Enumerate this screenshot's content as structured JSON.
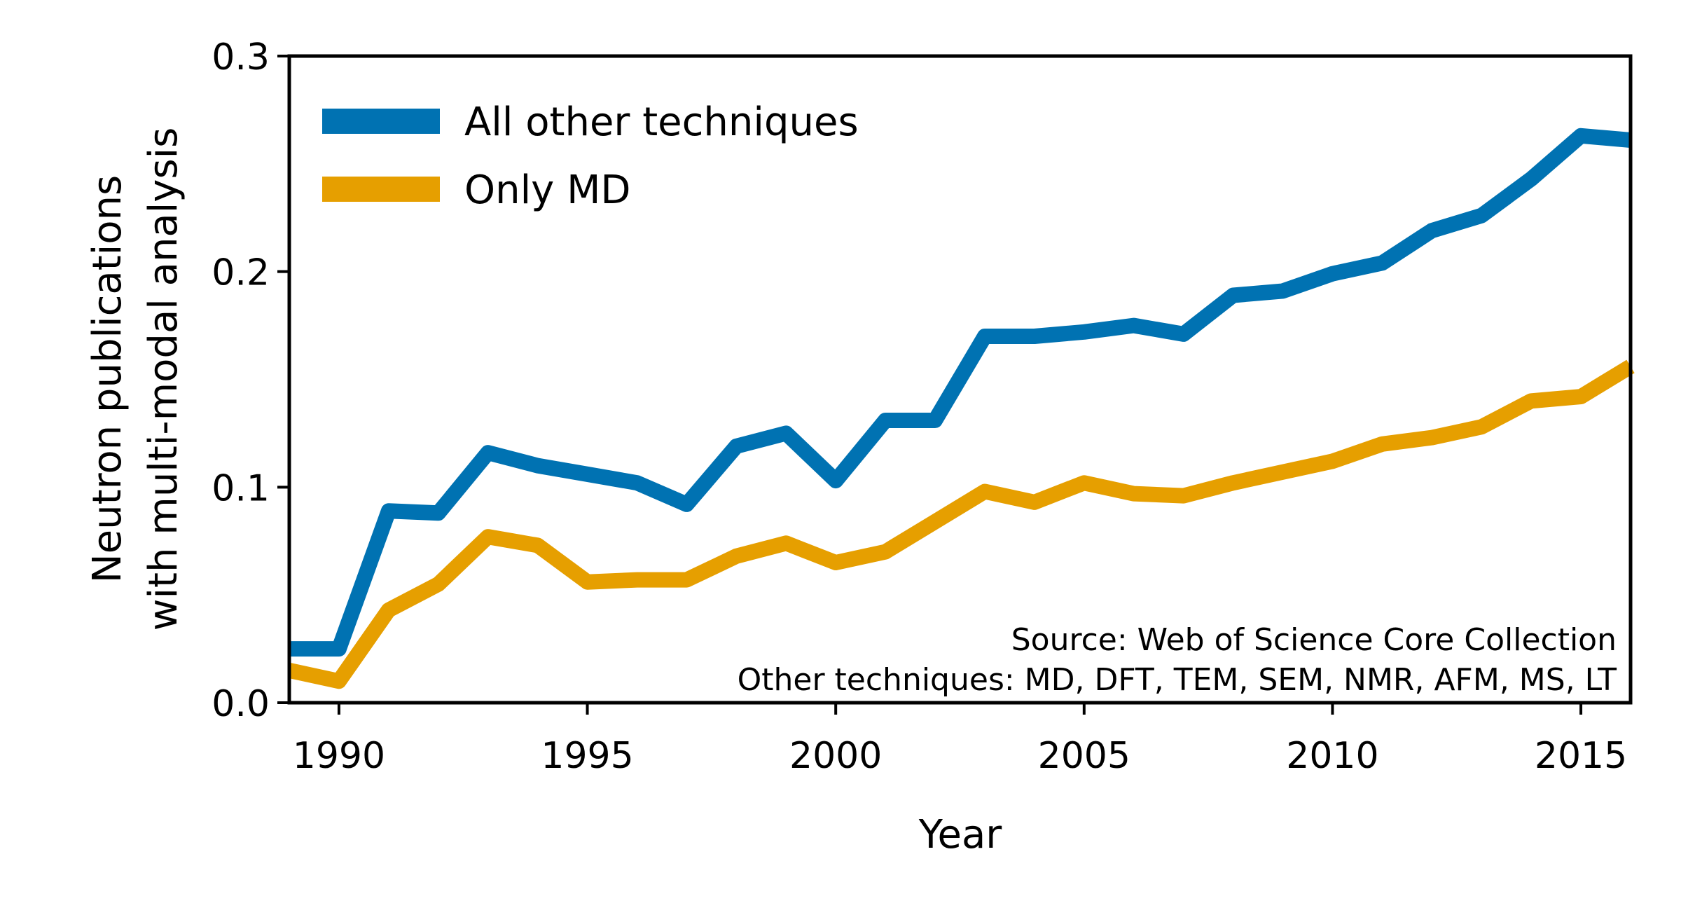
{
  "chart_data": {
    "type": "line",
    "xlabel": "Year",
    "ylabel_lines": [
      "Neutron publications",
      "with multi-modal analysis"
    ],
    "xlim": [
      1989,
      2016
    ],
    "ylim": [
      0,
      0.3
    ],
    "xticks": [
      1990,
      1995,
      2000,
      2005,
      2010,
      2015
    ],
    "yticks": [
      0.0,
      0.1,
      0.2,
      0.3
    ],
    "xtick_labels": [
      "1990",
      "1995",
      "2000",
      "2005",
      "2010",
      "2015"
    ],
    "ytick_labels": [
      "0.0",
      "0.1",
      "0.2",
      "0.3"
    ],
    "grid": false,
    "legend": "top-left",
    "x": [
      1989,
      1990,
      1991,
      1992,
      1993,
      1994,
      1995,
      1996,
      1997,
      1998,
      1999,
      2000,
      2001,
      2002,
      2003,
      2004,
      2005,
      2006,
      2007,
      2008,
      2009,
      2010,
      2011,
      2012,
      2013,
      2014,
      2015,
      2016
    ],
    "series": [
      {
        "name": "All other techniques",
        "color": "#0072b2",
        "values": [
          0.025,
          0.025,
          0.089,
          0.088,
          0.116,
          0.11,
          0.106,
          0.102,
          0.092,
          0.119,
          0.125,
          0.103,
          0.131,
          0.131,
          0.17,
          0.17,
          0.172,
          0.175,
          0.171,
          0.189,
          0.191,
          0.199,
          0.204,
          0.219,
          0.226,
          0.243,
          0.263,
          0.261
        ]
      },
      {
        "name": "Only MD",
        "color": "#e69f00",
        "values": [
          0.015,
          0.01,
          0.043,
          0.055,
          0.077,
          0.073,
          0.056,
          0.057,
          0.057,
          0.068,
          0.074,
          0.065,
          0.07,
          0.084,
          0.098,
          0.093,
          0.102,
          0.097,
          0.096,
          0.102,
          0.107,
          0.112,
          0.12,
          0.123,
          0.128,
          0.14,
          0.142,
          0.156
        ]
      }
    ],
    "annotations": [
      "Source: Web of Science Core Collection",
      "Other techniques: MD, DFT, TEM, SEM, NMR, AFM, MS, LT"
    ]
  }
}
